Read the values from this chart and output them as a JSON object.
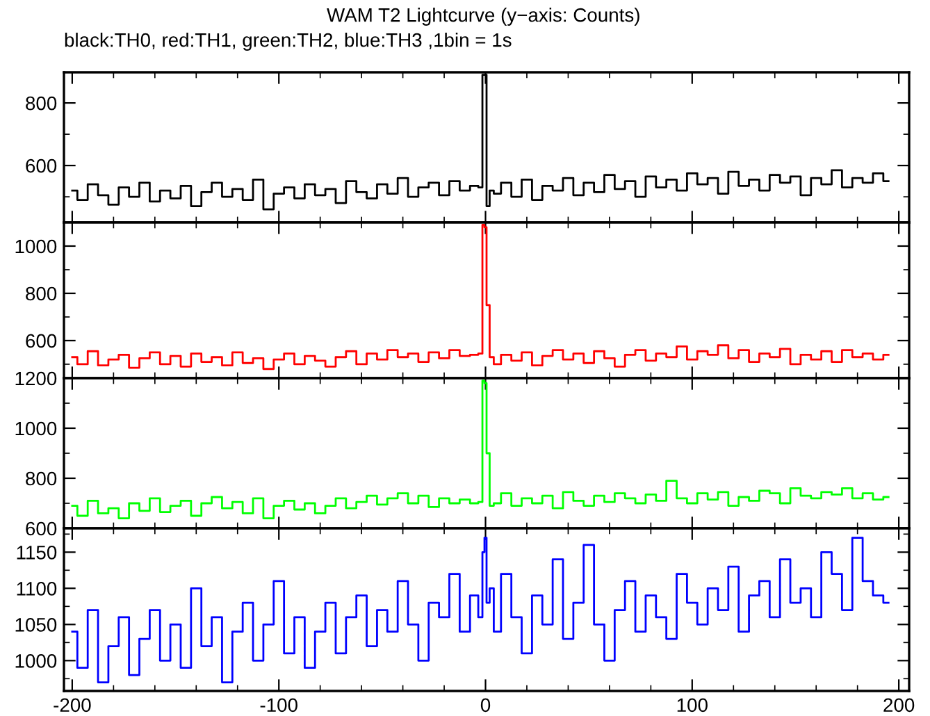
{
  "chart_data": [
    {
      "type": "step",
      "title": "WAM T2 Lightcurve (y−axis: Counts)",
      "subtitle": "black:TH0, red:TH1, green:TH2, blue:TH3 ,1bin = 1s",
      "tick_labels": "y",
      "xlim": [
        -204,
        205
      ],
      "xticks": [
        -200,
        -100,
        0,
        100,
        200
      ],
      "ylim": [
        418,
        898
      ],
      "yticks": [
        600,
        800
      ],
      "x": [
        -200,
        -195,
        -190,
        -185,
        -180,
        -175,
        -170,
        -165,
        -160,
        -155,
        -150,
        -145,
        -140,
        -135,
        -130,
        -125,
        -120,
        -115,
        -110,
        -105,
        -100,
        -95,
        -90,
        -85,
        -80,
        -75,
        -70,
        -65,
        -60,
        -55,
        -50,
        -45,
        -40,
        -35,
        -30,
        -25,
        -20,
        -15,
        -10,
        -5,
        -2,
        -1,
        0,
        1,
        3,
        5,
        10,
        15,
        20,
        25,
        30,
        35,
        40,
        45,
        50,
        55,
        60,
        65,
        70,
        75,
        80,
        85,
        90,
        95,
        100,
        105,
        110,
        115,
        120,
        125,
        130,
        135,
        140,
        145,
        150,
        155,
        160,
        165,
        170,
        175,
        180,
        185,
        190,
        195
      ],
      "series": [
        {
          "color": "#000000",
          "values": [
            520,
            490,
            540,
            505,
            475,
            530,
            500,
            545,
            485,
            520,
            495,
            535,
            470,
            515,
            545,
            500,
            525,
            490,
            555,
            460,
            510,
            530,
            495,
            540,
            505,
            525,
            480,
            550,
            515,
            495,
            540,
            510,
            560,
            500,
            530,
            545,
            505,
            550,
            520,
            535,
            530,
            890,
            890,
            470,
            520,
            510,
            545,
            500,
            555,
            490,
            535,
            520,
            560,
            505,
            545,
            515,
            570,
            525,
            550,
            500,
            565,
            530,
            555,
            520,
            575,
            540,
            560,
            510,
            580,
            535,
            555,
            520,
            570,
            545,
            565,
            505,
            560,
            540,
            585,
            530,
            560,
            545,
            575,
            550
          ]
        }
      ]
    },
    {
      "type": "step",
      "tick_labels": "y",
      "xlim": [
        -204,
        205
      ],
      "xticks": [
        -200,
        -100,
        0,
        100,
        200
      ],
      "ylim": [
        441,
        1100
      ],
      "yticks": [
        600,
        800,
        1000
      ],
      "x": [
        -200,
        -195,
        -190,
        -185,
        -180,
        -175,
        -170,
        -165,
        -160,
        -155,
        -150,
        -145,
        -140,
        -135,
        -130,
        -125,
        -120,
        -115,
        -110,
        -105,
        -100,
        -95,
        -90,
        -85,
        -80,
        -75,
        -70,
        -65,
        -60,
        -55,
        -50,
        -45,
        -40,
        -35,
        -30,
        -25,
        -20,
        -15,
        -10,
        -5,
        -2,
        -1,
        0,
        1,
        3,
        5,
        10,
        15,
        20,
        25,
        30,
        35,
        40,
        45,
        50,
        55,
        60,
        65,
        70,
        75,
        80,
        85,
        90,
        95,
        100,
        105,
        110,
        115,
        120,
        125,
        130,
        135,
        140,
        145,
        150,
        155,
        160,
        165,
        170,
        175,
        180,
        185,
        190,
        195
      ],
      "series": [
        {
          "color": "#ff0000",
          "values": [
            530,
            500,
            555,
            495,
            520,
            540,
            485,
            525,
            550,
            500,
            535,
            490,
            545,
            510,
            530,
            495,
            550,
            505,
            525,
            480,
            520,
            545,
            500,
            535,
            515,
            490,
            530,
            555,
            500,
            545,
            520,
            560,
            530,
            545,
            510,
            550,
            525,
            560,
            535,
            540,
            545,
            1090,
            1080,
            750,
            530,
            500,
            540,
            515,
            550,
            495,
            535,
            560,
            520,
            545,
            505,
            555,
            525,
            490,
            540,
            560,
            515,
            545,
            530,
            575,
            520,
            555,
            540,
            580,
            525,
            560,
            510,
            545,
            530,
            565,
            500,
            540,
            520,
            555,
            510,
            560,
            530,
            545,
            520,
            540
          ]
        }
      ]
    },
    {
      "type": "step",
      "tick_labels": "y",
      "xlim": [
        -204,
        205
      ],
      "xticks": [
        -200,
        -100,
        0,
        100,
        200
      ],
      "ylim": [
        600,
        1200
      ],
      "yticks": [
        600,
        800,
        1000,
        1200
      ],
      "x": [
        -200,
        -195,
        -190,
        -185,
        -180,
        -175,
        -170,
        -165,
        -160,
        -155,
        -150,
        -145,
        -140,
        -135,
        -130,
        -125,
        -120,
        -115,
        -110,
        -105,
        -100,
        -95,
        -90,
        -85,
        -80,
        -75,
        -70,
        -65,
        -60,
        -55,
        -50,
        -45,
        -40,
        -35,
        -30,
        -25,
        -20,
        -15,
        -10,
        -5,
        -2,
        -1,
        0,
        1,
        3,
        5,
        10,
        15,
        20,
        25,
        30,
        35,
        40,
        45,
        50,
        55,
        60,
        65,
        70,
        75,
        80,
        85,
        90,
        95,
        100,
        105,
        110,
        115,
        120,
        125,
        130,
        135,
        140,
        145,
        150,
        155,
        160,
        165,
        170,
        175,
        180,
        185,
        190,
        195
      ],
      "series": [
        {
          "color": "#00ff00",
          "values": [
            690,
            650,
            710,
            660,
            680,
            640,
            700,
            670,
            720,
            665,
            690,
            710,
            650,
            700,
            725,
            680,
            705,
            660,
            720,
            640,
            690,
            710,
            675,
            700,
            660,
            690,
            720,
            680,
            705,
            730,
            695,
            720,
            740,
            700,
            730,
            685,
            720,
            700,
            715,
            700,
            705,
            1190,
            1180,
            900,
            690,
            700,
            740,
            690,
            720,
            700,
            730,
            680,
            745,
            710,
            690,
            730,
            705,
            740,
            720,
            700,
            735,
            710,
            790,
            720,
            700,
            740,
            715,
            745,
            690,
            725,
            710,
            750,
            740,
            700,
            760,
            730,
            720,
            745,
            735,
            760,
            720,
            740,
            715,
            725
          ]
        }
      ]
    },
    {
      "type": "step",
      "xlim": [
        -204,
        205
      ],
      "xticks": [
        -200,
        -100,
        0,
        100,
        200
      ],
      "ylim": [
        958,
        1183
      ],
      "yticks": [
        1000,
        1050,
        1100,
        1150
      ],
      "x": [
        -200,
        -195,
        -190,
        -185,
        -180,
        -175,
        -170,
        -165,
        -160,
        -155,
        -150,
        -145,
        -140,
        -135,
        -130,
        -125,
        -120,
        -115,
        -110,
        -105,
        -100,
        -95,
        -90,
        -85,
        -80,
        -75,
        -70,
        -65,
        -60,
        -55,
        -50,
        -45,
        -40,
        -35,
        -30,
        -25,
        -20,
        -15,
        -10,
        -5,
        -2,
        -1,
        0,
        1,
        3,
        5,
        10,
        15,
        20,
        25,
        30,
        35,
        40,
        45,
        50,
        55,
        60,
        65,
        70,
        75,
        80,
        85,
        90,
        95,
        100,
        105,
        110,
        115,
        120,
        125,
        130,
        135,
        140,
        145,
        150,
        155,
        160,
        165,
        170,
        175,
        180,
        185,
        190,
        195
      ],
      "series": [
        {
          "color": "#0000ff",
          "values": [
            1040,
            990,
            1070,
            970,
            1020,
            1060,
            980,
            1030,
            1070,
            1000,
            1050,
            990,
            1100,
            1020,
            1060,
            970,
            1040,
            1080,
            1000,
            1050,
            1110,
            1010,
            1060,
            990,
            1040,
            1080,
            1010,
            1060,
            1090,
            1020,
            1070,
            1040,
            1110,
            1050,
            1000,
            1080,
            1060,
            1120,
            1040,
            1090,
            1060,
            1150,
            1170,
            1080,
            1100,
            1040,
            1120,
            1060,
            1010,
            1090,
            1050,
            1140,
            1030,
            1080,
            1160,
            1050,
            1000,
            1070,
            1110,
            1040,
            1090,
            1060,
            1030,
            1120,
            1080,
            1050,
            1100,
            1070,
            1130,
            1040,
            1090,
            1110,
            1060,
            1140,
            1080,
            1100,
            1060,
            1150,
            1120,
            1070,
            1170,
            1110,
            1090,
            1080
          ]
        }
      ]
    }
  ]
}
